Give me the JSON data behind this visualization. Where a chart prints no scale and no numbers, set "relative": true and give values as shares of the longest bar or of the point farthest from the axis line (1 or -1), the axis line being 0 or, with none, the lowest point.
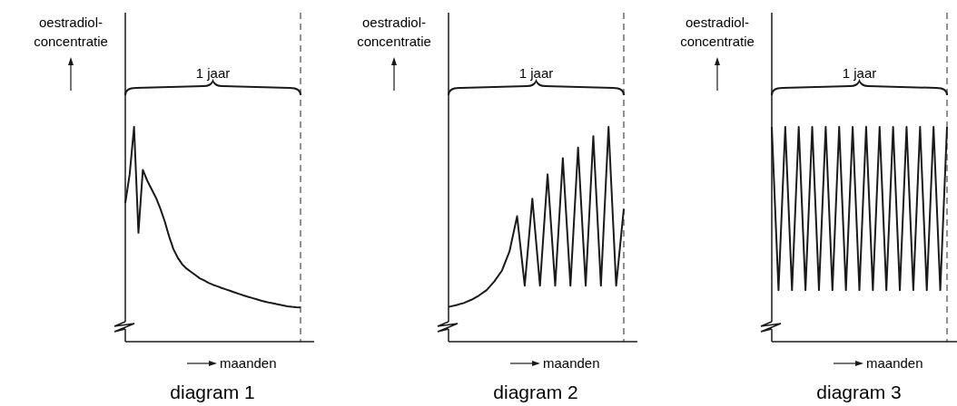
{
  "chart_data": [
    {
      "type": "line",
      "title": "diagram 1",
      "xlabel": "maanden",
      "ylabel": "oestradiol-concentratie",
      "relative": true,
      "color": "#1a1a1a",
      "categories": [
        null,
        null,
        null,
        null,
        null,
        null,
        null,
        null,
        null,
        null,
        null,
        null,
        null,
        null,
        null,
        null,
        null,
        null,
        null,
        null,
        null,
        null,
        null,
        null,
        null,
        null,
        null,
        null,
        null,
        null,
        null,
        null,
        null,
        null,
        null,
        null,
        null,
        null,
        null,
        null,
        null
      ],
      "values": [
        0.645,
        0.78,
        1,
        0.507,
        0.8,
        0.75,
        0.71,
        0.67,
        0.62,
        0.56,
        0.49,
        0.43,
        0.39,
        0.36,
        0.34,
        0.325,
        0.31,
        0.295,
        0.285,
        0.274,
        0.265,
        0.258,
        0.25,
        0.243,
        0.236,
        0.229,
        0.222,
        0.215,
        0.209,
        0.203,
        0.197,
        0.191,
        0.186,
        0.181,
        0.177,
        0.173,
        0.169,
        0.165,
        0.162,
        0.16,
        0.159
      ],
      "annotations": [
        "1 jaar"
      ]
    },
    {
      "type": "line",
      "title": "diagram 2",
      "xlabel": "maanden",
      "ylabel": "oestradiol-concentratie",
      "relative": true,
      "color": "#1a1a1a",
      "categories": [
        null,
        null,
        null,
        null,
        null,
        null,
        null,
        null,
        null,
        null,
        null,
        null,
        null,
        null,
        null,
        null,
        null,
        null,
        null,
        null,
        null,
        null,
        null,
        null
      ],
      "values": [
        0.162,
        0.17,
        0.18,
        0.195,
        0.215,
        0.24,
        0.28,
        0.33,
        0.42,
        0.584,
        0.261,
        0.666,
        0.261,
        0.779,
        0.261,
        0.854,
        0.261,
        0.904,
        0.261,
        0.957,
        0.261,
        1,
        0.261,
        0.618
      ],
      "annotations": [
        "1 jaar"
      ]
    },
    {
      "type": "line",
      "title": "diagram 3",
      "xlabel": "maanden",
      "ylabel": "oestradiol-concentratie",
      "relative": true,
      "color": "#1a1a1a",
      "categories": [
        null,
        null,
        null,
        null,
        null,
        null,
        null,
        null,
        null,
        null,
        null,
        null,
        null,
        null,
        null,
        null,
        null,
        null,
        null,
        null,
        null,
        null,
        null,
        null,
        null,
        null,
        null
      ],
      "values": [
        1,
        0.24,
        1,
        0.24,
        1,
        0.24,
        1,
        0.24,
        1,
        0.24,
        1,
        0.24,
        1,
        0.24,
        1,
        0.24,
        1,
        0.24,
        1,
        0.24,
        1,
        0.24,
        1,
        0.24,
        1,
        0.24,
        1
      ],
      "annotations": [
        "1 jaar"
      ]
    }
  ]
}
